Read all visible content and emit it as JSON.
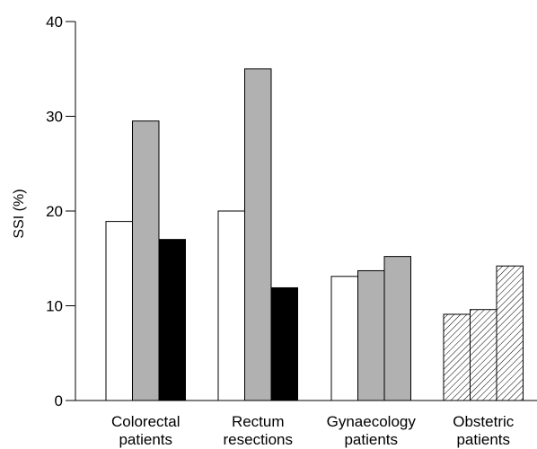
{
  "chart_data": {
    "type": "bar",
    "title": "",
    "xlabel": "",
    "ylabel": "SSI (%)",
    "ylim": [
      0,
      40
    ],
    "yticks": [
      0,
      10,
      20,
      30,
      40
    ],
    "grid": false,
    "legend": "none",
    "groups": [
      {
        "label_lines": [
          "Colorectal",
          "patients"
        ],
        "bars": [
          {
            "value": 18.9,
            "fill": "white"
          },
          {
            "value": 29.5,
            "fill": "gray"
          },
          {
            "value": 17.0,
            "fill": "black"
          }
        ]
      },
      {
        "label_lines": [
          "Rectum",
          "resections"
        ],
        "bars": [
          {
            "value": 20.0,
            "fill": "white"
          },
          {
            "value": 35.0,
            "fill": "gray"
          },
          {
            "value": 11.9,
            "fill": "black"
          }
        ]
      },
      {
        "label_lines": [
          "Gynaecology",
          "patients"
        ],
        "bars": [
          {
            "value": 13.1,
            "fill": "white"
          },
          {
            "value": 13.7,
            "fill": "gray"
          },
          {
            "value": 15.2,
            "fill": "gray"
          }
        ]
      },
      {
        "label_lines": [
          "Obstetric",
          "patients"
        ],
        "bars": [
          {
            "value": 9.1,
            "fill": "hatch"
          },
          {
            "value": 9.6,
            "fill": "hatch"
          },
          {
            "value": 14.2,
            "fill": "hatch"
          }
        ]
      }
    ],
    "colors": {
      "white": "#ffffff",
      "gray": "#b1b1b1",
      "black": "#000000",
      "stroke": "#000000"
    }
  }
}
